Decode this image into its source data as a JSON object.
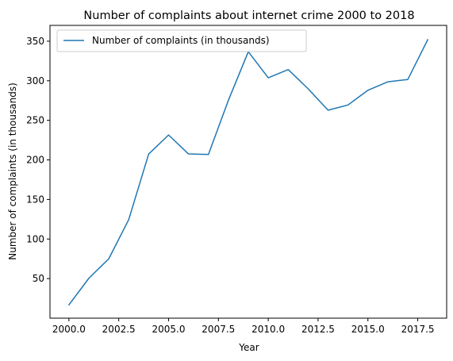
{
  "chart_data": {
    "type": "line",
    "title": "Number of complaints about internet crime 2000 to 2018",
    "xlabel": "Year",
    "ylabel": "Number of complaints (in thousands)",
    "x": [
      2000,
      2001,
      2002,
      2003,
      2004,
      2005,
      2006,
      2007,
      2008,
      2009,
      2010,
      2011,
      2012,
      2013,
      2014,
      2015,
      2016,
      2017,
      2018
    ],
    "series": [
      {
        "name": "Number of complaints (in thousands)",
        "color": "#1f77b4",
        "values": [
          16.8,
          50.4,
          75.1,
          124.5,
          207.4,
          231.5,
          207.5,
          206.9,
          275.3,
          336.7,
          303.8,
          314.2,
          289.9,
          262.8,
          269.4,
          288.0,
          298.7,
          301.6,
          351.9
        ]
      }
    ],
    "xlim": [
      1999.05,
      2018.95
    ],
    "ylim": [
      0,
      370
    ],
    "xticks": [
      2000.0,
      2002.5,
      2005.0,
      2007.5,
      2010.0,
      2012.5,
      2015.0,
      2017.5
    ],
    "xtick_labels": [
      "2000.0",
      "2002.5",
      "2005.0",
      "2007.5",
      "2010.0",
      "2012.5",
      "2015.0",
      "2017.5"
    ],
    "yticks": [
      50,
      100,
      150,
      200,
      250,
      300,
      350
    ],
    "ytick_labels": [
      "50",
      "100",
      "150",
      "200",
      "250",
      "300",
      "350"
    ],
    "grid": false,
    "legend_position": "upper-left"
  }
}
